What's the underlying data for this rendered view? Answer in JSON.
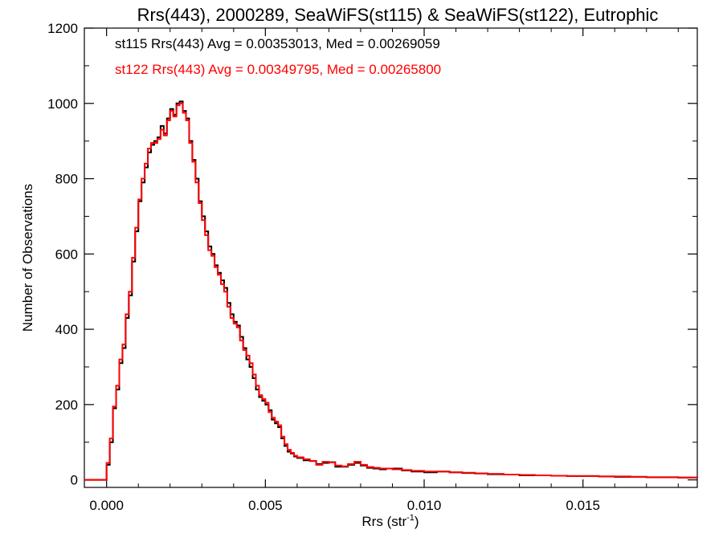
{
  "chart_data": {
    "type": "line",
    "title": "Rrs(443), 2000289, SeaWiFS(st115) & SeaWiFS(st122), Eutrophic",
    "xlabel": "Rrs (str",
    "xlabel_sup": "-1",
    "xlabel_end": ")",
    "ylabel": "Number of Observations",
    "xlim": [
      -0.0007,
      0.0186
    ],
    "ylim": [
      -20,
      1200
    ],
    "x_ticks": [
      0.0,
      0.005,
      0.01,
      0.015
    ],
    "x_tick_labels": [
      "0.000",
      "0.005",
      "0.010",
      "0.015"
    ],
    "y_ticks": [
      0,
      200,
      400,
      600,
      800,
      1000,
      1200
    ],
    "y_tick_labels": [
      "0",
      "200",
      "400",
      "600",
      "800",
      "1000",
      "1200"
    ],
    "annotations": [
      {
        "text": "st115 Rrs(443) Avg = 0.00353013, Med = 0.00269059",
        "color": "#000000"
      },
      {
        "text": "st122 Rrs(443) Avg = 0.00349795, Med = 0.00265800",
        "color": "#ff0000"
      }
    ],
    "series": [
      {
        "label": "st115",
        "color": "#000000",
        "x": [
          -0.0007,
          0.0,
          0.0001,
          0.0002,
          0.0003,
          0.0004,
          0.0005,
          0.0006,
          0.0007,
          0.0008,
          0.0009,
          0.001,
          0.0011,
          0.0012,
          0.0013,
          0.0014,
          0.0015,
          0.0016,
          0.0017,
          0.0018,
          0.0019,
          0.002,
          0.0021,
          0.0022,
          0.0023,
          0.0024,
          0.0025,
          0.0026,
          0.0027,
          0.0028,
          0.0029,
          0.003,
          0.0031,
          0.0032,
          0.0033,
          0.0034,
          0.0035,
          0.0036,
          0.0037,
          0.0038,
          0.0039,
          0.004,
          0.0041,
          0.0042,
          0.0043,
          0.0044,
          0.0045,
          0.0046,
          0.0047,
          0.0048,
          0.0049,
          0.005,
          0.0051,
          0.0052,
          0.0053,
          0.0054,
          0.0055,
          0.0056,
          0.0057,
          0.0058,
          0.0059,
          0.006,
          0.0062,
          0.0064,
          0.0066,
          0.0068,
          0.007,
          0.0072,
          0.0074,
          0.0076,
          0.0078,
          0.008,
          0.0082,
          0.0084,
          0.0086,
          0.0088,
          0.009,
          0.0093,
          0.0096,
          0.01,
          0.0104,
          0.0108,
          0.0112,
          0.0116,
          0.012,
          0.0125,
          0.013,
          0.0135,
          0.014,
          0.0145,
          0.015,
          0.0155,
          0.016,
          0.0165,
          0.017,
          0.0175,
          0.018,
          0.0183,
          0.0186
        ],
        "y": [
          0,
          40,
          100,
          190,
          240,
          310,
          350,
          430,
          490,
          580,
          660,
          740,
          790,
          830,
          870,
          890,
          900,
          910,
          940,
          920,
          960,
          985,
          970,
          1000,
          1005,
          980,
          960,
          900,
          850,
          800,
          740,
          700,
          660,
          620,
          600,
          570,
          550,
          530,
          510,
          470,
          440,
          420,
          410,
          380,
          350,
          320,
          300,
          270,
          240,
          220,
          210,
          200,
          185,
          160,
          150,
          140,
          110,
          90,
          75,
          70,
          62,
          58,
          52,
          50,
          42,
          45,
          47,
          35,
          35,
          40,
          45,
          38,
          32,
          30,
          28,
          30,
          30,
          25,
          22,
          20,
          22,
          20,
          18,
          17,
          15,
          14,
          12,
          12,
          11,
          10,
          10,
          9,
          8,
          8,
          7,
          7,
          6,
          6,
          5
        ]
      },
      {
        "label": "st122",
        "color": "#ff0000",
        "x": [
          -0.0007,
          0.0,
          0.0001,
          0.0002,
          0.0003,
          0.0004,
          0.0005,
          0.0006,
          0.0007,
          0.0008,
          0.0009,
          0.001,
          0.0011,
          0.0012,
          0.0013,
          0.0014,
          0.0015,
          0.0016,
          0.0017,
          0.0018,
          0.0019,
          0.002,
          0.0021,
          0.0022,
          0.0023,
          0.0024,
          0.0025,
          0.0026,
          0.0027,
          0.0028,
          0.0029,
          0.003,
          0.0031,
          0.0032,
          0.0033,
          0.0034,
          0.0035,
          0.0036,
          0.0037,
          0.0038,
          0.0039,
          0.004,
          0.0041,
          0.0042,
          0.0043,
          0.0044,
          0.0045,
          0.0046,
          0.0047,
          0.0048,
          0.0049,
          0.005,
          0.0051,
          0.0052,
          0.0053,
          0.0054,
          0.0055,
          0.0056,
          0.0057,
          0.0058,
          0.0059,
          0.006,
          0.0062,
          0.0064,
          0.0066,
          0.0068,
          0.007,
          0.0072,
          0.0074,
          0.0076,
          0.0078,
          0.008,
          0.0082,
          0.0084,
          0.0086,
          0.0088,
          0.009,
          0.0093,
          0.0096,
          0.01,
          0.0104,
          0.0108,
          0.0112,
          0.0116,
          0.012,
          0.0125,
          0.013,
          0.0135,
          0.014,
          0.0145,
          0.015,
          0.0155,
          0.016,
          0.0165,
          0.017,
          0.0175,
          0.018,
          0.0183,
          0.0186
        ],
        "y": [
          0,
          45,
          110,
          195,
          250,
          320,
          360,
          440,
          500,
          590,
          670,
          745,
          800,
          840,
          880,
          895,
          895,
          905,
          930,
          915,
          955,
          980,
          965,
          995,
          1000,
          975,
          955,
          895,
          845,
          790,
          735,
          690,
          650,
          610,
          595,
          565,
          545,
          520,
          500,
          460,
          430,
          415,
          405,
          370,
          345,
          330,
          310,
          280,
          250,
          225,
          215,
          205,
          180,
          165,
          155,
          145,
          115,
          95,
          80,
          72,
          64,
          60,
          55,
          50,
          40,
          48,
          46,
          38,
          36,
          42,
          48,
          40,
          34,
          32,
          30,
          30,
          28,
          26,
          24,
          22,
          22,
          20,
          19,
          17,
          16,
          14,
          13,
          12,
          11,
          10,
          10,
          9,
          9,
          8,
          7,
          7,
          6,
          6,
          5
        ]
      }
    ]
  }
}
